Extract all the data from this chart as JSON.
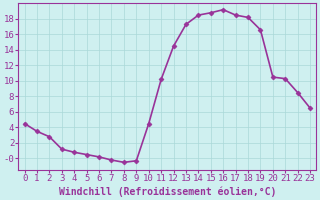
{
  "x": [
    0,
    1,
    2,
    3,
    4,
    5,
    6,
    7,
    8,
    9,
    10,
    11,
    12,
    13,
    14,
    15,
    16,
    17,
    18,
    19,
    20,
    21,
    22,
    23
  ],
  "y": [
    4.5,
    3.5,
    2.8,
    1.2,
    0.8,
    0.5,
    0.2,
    -0.2,
    -0.5,
    -0.3,
    4.5,
    10.2,
    14.5,
    17.3,
    18.5,
    18.8,
    19.2,
    18.5,
    18.2,
    16.6,
    10.5,
    10.3,
    8.5,
    6.5
  ],
  "line_color": "#993399",
  "marker": "D",
  "marker_size": 2.5,
  "background_color": "#cff0f0",
  "grid_color": "#aad8d8",
  "xlabel": "Windchill (Refroidissement éolien,°C)",
  "xlim": [
    -0.5,
    23.5
  ],
  "ylim": [
    -1.5,
    20.0
  ],
  "xticks": [
    0,
    1,
    2,
    3,
    4,
    5,
    6,
    7,
    8,
    9,
    10,
    11,
    12,
    13,
    14,
    15,
    16,
    17,
    18,
    19,
    20,
    21,
    22,
    23
  ],
  "yticks": [
    0,
    2,
    4,
    6,
    8,
    10,
    12,
    14,
    16,
    18
  ],
  "ytick_labels": [
    "-0",
    "2",
    "4",
    "6",
    "8",
    "10",
    "12",
    "14",
    "16",
    "18"
  ],
  "tick_color": "#993399",
  "xlabel_fontsize": 7.0,
  "tick_fontsize": 6.5,
  "line_width": 1.2
}
